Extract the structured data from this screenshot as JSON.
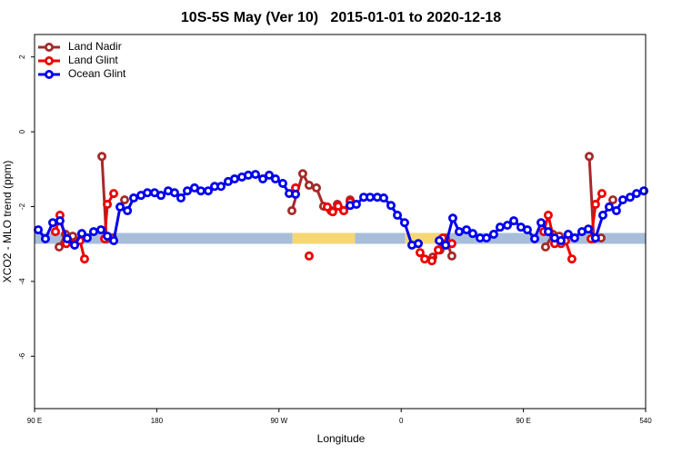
{
  "chart_data": {
    "type": "line",
    "title": "10S-5S May (Ver 10)   2015-01-01 to 2020-12-18",
    "x_label": "Longitude",
    "y_label": "XCO2 - MLO trend (ppm)",
    "xlim": [
      90,
      540
    ],
    "ylim": [
      -7.4,
      2.6
    ],
    "xticks": [
      {
        "value": 90,
        "label": "90 E"
      },
      180,
      {
        "value": 270,
        "label": "90 W"
      },
      {
        "value": 360,
        "label": "0"
      },
      {
        "value": 450,
        "label": "90 E"
      },
      540
    ],
    "yticks": [
      2,
      0,
      -2,
      -4,
      -6
    ],
    "grid": false,
    "legend": "top-left",
    "bands": {
      "y": -2.85,
      "segments": [
        {
          "from": 90,
          "to": 280,
          "color": "#a7bedb"
        },
        {
          "from": 280,
          "to": 326,
          "color": "#f7d774"
        },
        {
          "from": 326,
          "to": 363,
          "color": "#a7bedb"
        },
        {
          "from": 363,
          "to": 396,
          "color": "#f7d774"
        },
        {
          "from": 396,
          "to": 540,
          "color": "#a7bedb"
        }
      ]
    },
    "series": [
      {
        "name": "Land Nadir",
        "color": "#a52a2a",
        "x": [
          108.1,
          112.8,
          118.1,
          122.8,
          130,
          139.6,
          142.9,
          147.6,
          150,
          156.3,
          200,
          279.5,
          287.5,
          292.2,
          297.6,
          302.9,
          308.3,
          313.0,
          317.7,
          322.4,
          340,
          383.3,
          388.6,
          392.7,
          397.3,
          420,
          466.3,
          471.7,
          476.4,
          481.0,
          490,
          498.5,
          501.8,
          507.2,
          510,
          515.9
        ],
        "values": [
          -3.08,
          -2.74,
          -2.79,
          -2.91,
          null,
          -0.66,
          -2.86,
          -2.84,
          null,
          -1.82,
          null,
          -2.11,
          -1.12,
          -1.43,
          -1.5,
          -1.99,
          -2.11,
          -1.94,
          -2.11,
          -1.82,
          null,
          -3.35,
          -3.16,
          -2.84,
          -3.32,
          null,
          -3.08,
          -2.74,
          -2.79,
          -2.91,
          null,
          -0.66,
          -2.86,
          -2.84,
          null,
          -1.82
        ]
      },
      {
        "name": "Land Glint",
        "color": "#ee0000",
        "x": [
          105.4,
          108.7,
          113.4,
          118.8,
          123.5,
          126.8,
          130,
          141.6,
          143.6,
          148.3,
          160,
          282.2,
          285,
          292.2,
          300,
          305.6,
          309.6,
          313.6,
          317.7,
          322.4,
          340,
          373.9,
          377.3,
          382.6,
          387.3,
          390.6,
          393.3,
          397.3,
          420,
          465.0,
          468.3,
          473.0,
          477.7,
          481.0,
          485.7,
          495,
          499.8,
          503.1,
          507.8
        ],
        "values": [
          -2.67,
          -2.23,
          -2.99,
          -2.99,
          -2.91,
          -3.4,
          null,
          -2.86,
          -1.94,
          -1.65,
          null,
          -1.5,
          null,
          -3.32,
          null,
          -2.01,
          -2.14,
          -1.99,
          -2.11,
          -1.87,
          null,
          -3.23,
          -3.4,
          -3.45,
          -3.16,
          -2.84,
          -3.03,
          -2.99,
          null,
          -2.67,
          -2.23,
          -2.99,
          -2.99,
          -2.91,
          -3.4,
          null,
          -2.86,
          -1.94,
          -1.65
        ]
      },
      {
        "name": "Ocean Glint",
        "color": "#0000ee",
        "x": [
          92.7,
          98.0,
          103.4,
          108.7,
          114.1,
          119.5,
          124.8,
          128.8,
          133.5,
          138.9,
          143.6,
          148.3,
          153.0,
          158.4,
          163.0,
          168.4,
          173.1,
          178.4,
          183.1,
          188.4,
          193.1,
          197.8,
          202.5,
          207.8,
          212.5,
          217.9,
          222.6,
          227.3,
          232.6,
          237.3,
          242.7,
          247.4,
          252.7,
          258.1,
          262.8,
          267.4,
          272.8,
          277.5,
          282.2,
          300,
          322.4,
          327.0,
          332.4,
          337.1,
          342.4,
          347.1,
          352.5,
          357.2,
          362.5,
          367.9,
          372.6,
          380,
          388.0,
          392.7,
          398.0,
          402.7,
          408.1,
          412.7,
          418.1,
          422.8,
          428.1,
          432.8,
          438.2,
          442.9,
          448.2,
          452.9,
          458.3,
          463.0,
          468.3,
          473.0,
          477.7,
          483.0,
          487.7,
          493.1,
          497.8,
          503.1,
          508.5,
          513.2,
          518.5,
          523.2,
          528.6,
          533.3,
          538.7
        ],
        "values": [
          -2.62,
          -2.86,
          -2.43,
          -2.38,
          -2.86,
          -3.03,
          -2.72,
          -2.84,
          -2.67,
          -2.62,
          -2.79,
          -2.91,
          -2.01,
          -2.11,
          -1.77,
          -1.7,
          -1.63,
          -1.63,
          -1.7,
          -1.58,
          -1.63,
          -1.77,
          -1.58,
          -1.5,
          -1.58,
          -1.58,
          -1.46,
          -1.46,
          -1.33,
          -1.26,
          -1.21,
          -1.16,
          -1.14,
          -1.26,
          -1.16,
          -1.26,
          -1.38,
          -1.65,
          -1.67,
          null,
          -1.97,
          -1.94,
          -1.75,
          -1.75,
          -1.75,
          -1.77,
          -1.97,
          -2.23,
          -2.43,
          -3.03,
          -2.99,
          null,
          -2.91,
          -3.03,
          -2.31,
          -2.67,
          -2.62,
          -2.72,
          -2.84,
          -2.84,
          -2.74,
          -2.55,
          -2.5,
          -2.38,
          -2.55,
          -2.62,
          -2.86,
          -2.43,
          -2.67,
          -2.84,
          -2.91,
          -2.74,
          -2.84,
          -2.67,
          -2.6,
          -2.84,
          -2.23,
          -2.01,
          -2.11,
          -1.82,
          -1.75,
          -1.65,
          -1.58
        ]
      }
    ]
  }
}
